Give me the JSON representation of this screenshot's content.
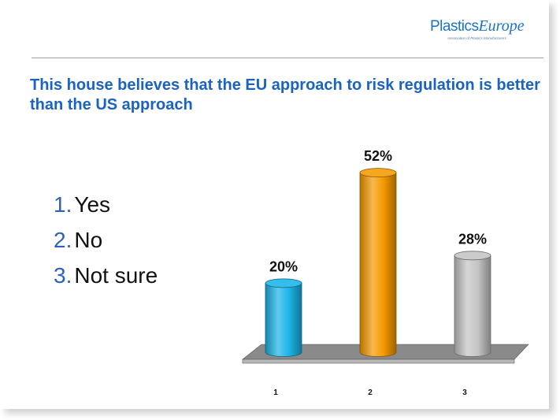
{
  "logo": {
    "name_part1": "Plastics",
    "name_part2": "Europe",
    "tagline": "Association of Plastics Manufacturers"
  },
  "title": "This house believes that the EU approach to risk regulation is better than the US approach",
  "options": [
    {
      "number": "1.",
      "label": "Yes"
    },
    {
      "number": "2.",
      "label": "No"
    },
    {
      "number": "3.",
      "label": "Not sure"
    }
  ],
  "colors": {
    "title": "#1a63c0",
    "option_number": "#2e62b8",
    "floor": "#8a8a8a",
    "bar_1": "#1cb4e8",
    "bar_2": "#f59a00",
    "bar_3": "#c4c4c4"
  },
  "chart_data": {
    "type": "bar",
    "style": "3d-cylinder",
    "categories": [
      "1",
      "2",
      "3"
    ],
    "values": [
      20,
      52,
      28
    ],
    "data_labels": [
      "20%",
      "52%",
      "28%"
    ],
    "colors": [
      "#1cb4e8",
      "#f59a00",
      "#c4c4c4"
    ],
    "ylim": [
      0,
      55
    ],
    "grid": false,
    "legend": "none",
    "title": "",
    "xlabel": "",
    "ylabel": ""
  }
}
